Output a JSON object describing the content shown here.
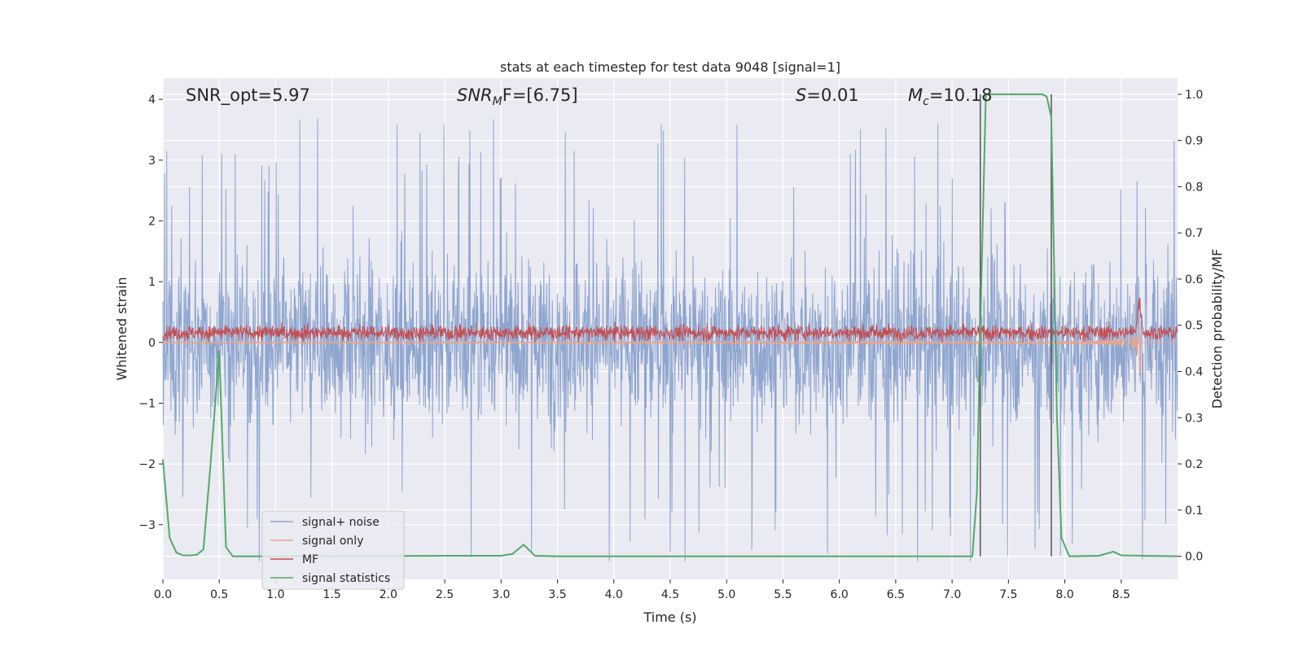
{
  "chart_data": {
    "type": "line",
    "title": "stats at each timestep for test data 9048 [signal=1]",
    "xlabel": "Time (s)",
    "ylabel": "Whitened strain",
    "y2label": "Detection probability/MF",
    "xlim": [
      0.0,
      9.0
    ],
    "ylim": [
      -3.9,
      4.35
    ],
    "y2lim": [
      -0.05,
      1.035
    ],
    "xticks": [
      0.0,
      0.5,
      1.0,
      1.5,
      2.0,
      2.5,
      3.0,
      3.5,
      4.0,
      4.5,
      5.0,
      5.5,
      6.0,
      6.5,
      7.0,
      7.5,
      8.0,
      8.5
    ],
    "yticks": [
      -3,
      -2,
      -1,
      0,
      1,
      2,
      3,
      4
    ],
    "y2ticks": [
      0.0,
      0.1,
      0.2,
      0.3,
      0.4,
      0.5,
      0.6,
      0.7,
      0.8,
      0.9,
      1.0
    ],
    "grid": true,
    "legend_position": "lower-left",
    "annotations": {
      "snr_opt": "SNR_opt=5.97",
      "snr_mf_base": "SNR",
      "snr_mf_sub": "M",
      "snr_mf_rest": "F=[6.75]",
      "s_var": "S",
      "s_rest": "=0.01",
      "mc_base": "M",
      "mc_sub": "c",
      "mc_rest": "=10.18"
    },
    "vertical_lines": [
      7.25,
      7.88
    ],
    "series": [
      {
        "name": "signal+ noise",
        "color": "#8ea5cf",
        "axis": "left"
      },
      {
        "name": "signal only",
        "color": "#e8a58c",
        "axis": "left"
      },
      {
        "name": "MF",
        "color": "#c44e52",
        "axis": "left"
      },
      {
        "name": "signal statistics",
        "color": "#55a868",
        "axis": "right",
        "x": [
          0.0,
          0.06,
          0.12,
          0.18,
          0.24,
          0.3,
          0.36,
          0.42,
          0.5,
          0.56,
          0.62,
          0.8,
          1.5,
          2.5,
          3.0,
          3.1,
          3.2,
          3.3,
          3.5,
          5.0,
          7.0,
          7.18,
          7.22,
          7.26,
          7.3,
          7.4,
          7.6,
          7.8,
          7.84,
          7.88,
          7.93,
          7.97,
          8.04,
          8.3,
          8.43,
          8.5,
          9.0
        ],
        "y": [
          0.21,
          0.04,
          0.008,
          0.002,
          0.002,
          0.003,
          0.015,
          0.19,
          0.445,
          0.02,
          0.0,
          0.0,
          0.0,
          0.001,
          0.001,
          0.005,
          0.025,
          0.001,
          0.0,
          0.0,
          0.0,
          0.0,
          0.14,
          0.6,
          1.0,
          1.0,
          1.0,
          1.0,
          0.995,
          0.95,
          0.3,
          0.04,
          0.0,
          0.001,
          0.01,
          0.002,
          0.0
        ]
      }
    ]
  }
}
